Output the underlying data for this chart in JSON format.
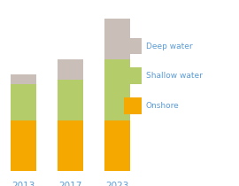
{
  "categories": [
    "2013",
    "2017",
    "2023"
  ],
  "onshore": [
    40,
    40,
    40
  ],
  "shallow_water": [
    28,
    32,
    48
  ],
  "deep_water": [
    8,
    16,
    32
  ],
  "colors": {
    "onshore": "#f5a800",
    "shallow_water": "#b5cc6a",
    "deep_water": "#c9bfb8"
  },
  "legend_labels": [
    "Deep water",
    "Shallow water",
    "Onshore"
  ],
  "legend_colors": [
    "#c9bfb8",
    "#b5cc6a",
    "#f5a800"
  ],
  "background_color": "#ffffff",
  "bar_width": 0.55,
  "label_color": "#5b9bd5",
  "label_fontsize": 7.5,
  "ylim": [
    0,
    130
  ],
  "xlim": [
    -0.4,
    4.5
  ]
}
